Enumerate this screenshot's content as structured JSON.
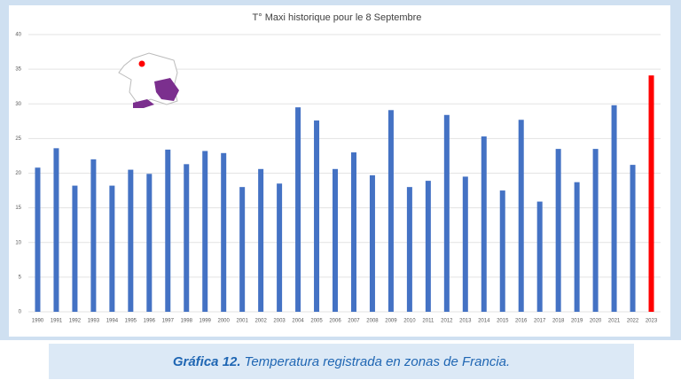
{
  "chart_data": {
    "type": "bar",
    "title": "T° Maxi historique pour le 8 Septembre",
    "categories": [
      "1990",
      "1991",
      "1992",
      "1993",
      "1994",
      "1995",
      "1996",
      "1997",
      "1998",
      "1999",
      "2000",
      "2001",
      "2002",
      "2003",
      "2004",
      "2005",
      "2006",
      "2007",
      "2008",
      "2009",
      "2010",
      "2011",
      "2012",
      "2013",
      "2014",
      "2015",
      "2016",
      "2017",
      "2018",
      "2019",
      "2020",
      "2021",
      "2022",
      "2023"
    ],
    "values": [
      20.8,
      23.6,
      18.2,
      22.0,
      18.2,
      20.5,
      19.9,
      23.4,
      21.3,
      23.2,
      22.9,
      18.0,
      20.6,
      18.5,
      29.5,
      27.6,
      20.6,
      23.0,
      19.7,
      29.1,
      18.0,
      18.9,
      28.4,
      19.5,
      25.3,
      17.5,
      27.7,
      15.9,
      23.5,
      18.7,
      23.5,
      29.8,
      21.2,
      34.1
    ],
    "colors": [
      "#4472c4",
      "#4472c4",
      "#4472c4",
      "#4472c4",
      "#4472c4",
      "#4472c4",
      "#4472c4",
      "#4472c4",
      "#4472c4",
      "#4472c4",
      "#4472c4",
      "#4472c4",
      "#4472c4",
      "#4472c4",
      "#4472c4",
      "#4472c4",
      "#4472c4",
      "#4472c4",
      "#4472c4",
      "#4472c4",
      "#4472c4",
      "#4472c4",
      "#4472c4",
      "#4472c4",
      "#4472c4",
      "#4472c4",
      "#4472c4",
      "#4472c4",
      "#4472c4",
      "#4472c4",
      "#4472c4",
      "#4472c4",
      "#4472c4",
      "#ff0000"
    ],
    "ylim": [
      0,
      40
    ],
    "yticks": [
      0,
      5,
      10,
      15,
      20,
      25,
      30,
      35,
      40
    ],
    "grid": true
  },
  "caption": {
    "label": "Gráfica 12.",
    "text": "Temperatura registrada en zonas de Francia."
  }
}
